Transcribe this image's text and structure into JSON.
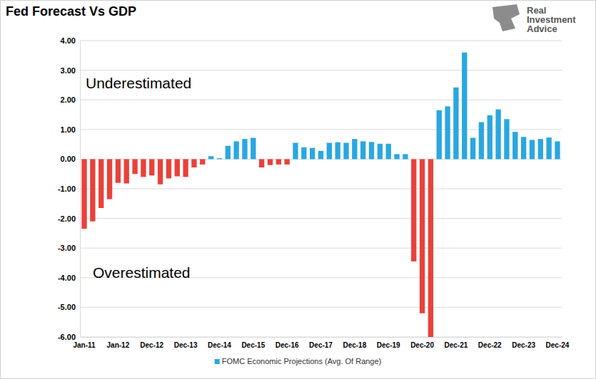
{
  "chart_data": {
    "type": "bar",
    "title": "Fed Forecast Vs GDP",
    "watermark": [
      "Real",
      "Investment",
      "Advice"
    ],
    "annotations": [
      "Underestimated",
      "Overestimated"
    ],
    "categories": [
      "Jan-11",
      null,
      null,
      null,
      "Jan-12",
      null,
      null,
      null,
      "Dec-12",
      null,
      null,
      null,
      "Dec-13",
      null,
      null,
      null,
      "Dec-14",
      null,
      null,
      null,
      "Dec-15",
      null,
      null,
      null,
      "Dec-16",
      null,
      null,
      null,
      "Dec-17",
      null,
      null,
      null,
      "Dec-18",
      null,
      null,
      null,
      "Dec-19",
      null,
      null,
      null,
      "Dec-20",
      null,
      null,
      null,
      "Dec-21",
      null,
      null,
      null,
      "Dec-22",
      null,
      null,
      null,
      "Dec-23",
      null,
      null,
      null,
      "Dec-24"
    ],
    "series": [
      {
        "name": "FOMC Economic Projections (Avg. Of Range)",
        "color": "#2aa7e0",
        "colors": [
          "#e8423a",
          "#e8423a",
          "#e8423a",
          "#e8423a",
          "#e8423a",
          "#e8423a",
          "#e8423a",
          "#e8423a",
          "#e8423a",
          "#e8423a",
          "#e8423a",
          "#e8423a",
          "#e8423a",
          "#e8423a",
          "#e8423a",
          "#2aa7e0",
          "#2aa7e0",
          "#2aa7e0",
          "#2aa7e0",
          "#2aa7e0",
          "#2aa7e0",
          "#e8423a",
          "#e8423a",
          "#e8423a",
          "#e8423a",
          "#2aa7e0",
          "#2aa7e0",
          "#2aa7e0",
          "#2aa7e0",
          "#2aa7e0",
          "#2aa7e0",
          "#2aa7e0",
          "#2aa7e0",
          "#2aa7e0",
          "#2aa7e0",
          "#2aa7e0",
          "#2aa7e0",
          "#2aa7e0",
          "#2aa7e0",
          "#e8423a",
          "#e8423a",
          "#e8423a",
          "#2aa7e0",
          "#2aa7e0",
          "#2aa7e0",
          "#2aa7e0",
          "#2aa7e0",
          "#2aa7e0",
          "#2aa7e0",
          "#2aa7e0",
          "#2aa7e0",
          "#2aa7e0",
          "#2aa7e0",
          "#2aa7e0",
          "#2aa7e0",
          "#2aa7e0",
          "#2aa7e0"
        ],
        "values": [
          -2.35,
          -2.1,
          -1.65,
          -1.35,
          -0.8,
          -0.82,
          -0.5,
          -0.6,
          -0.55,
          -0.85,
          -0.65,
          -0.58,
          -0.6,
          -0.28,
          -0.18,
          0.1,
          0.03,
          0.45,
          0.6,
          0.68,
          0.72,
          -0.28,
          -0.2,
          -0.18,
          -0.18,
          0.55,
          0.4,
          0.38,
          0.28,
          0.55,
          0.57,
          0.55,
          0.68,
          0.6,
          0.58,
          0.52,
          0.52,
          0.17,
          0.17,
          -3.45,
          -5.2,
          -6.0,
          1.65,
          1.78,
          2.42,
          3.6,
          0.72,
          1.25,
          1.48,
          1.68,
          1.35,
          0.92,
          0.75,
          0.65,
          0.68,
          0.73,
          0.6
        ]
      }
    ],
    "ylim": [
      -6,
      4
    ],
    "yticks": [
      {
        "value": -6,
        "label": "-6.00"
      },
      {
        "value": -5,
        "label": "-5.00"
      },
      {
        "value": -4,
        "label": "-4.00"
      },
      {
        "value": -3,
        "label": "-3.00"
      },
      {
        "value": -2,
        "label": "-2.00"
      },
      {
        "value": -1,
        "label": "-1.00"
      },
      {
        "value": 0,
        "label": "0.00"
      },
      {
        "value": 1,
        "label": "1.00"
      },
      {
        "value": 2,
        "label": "2.00"
      },
      {
        "value": 3,
        "label": "3.00"
      },
      {
        "value": 4,
        "label": "4.00"
      }
    ],
    "grid": true,
    "legend": "bottom"
  }
}
